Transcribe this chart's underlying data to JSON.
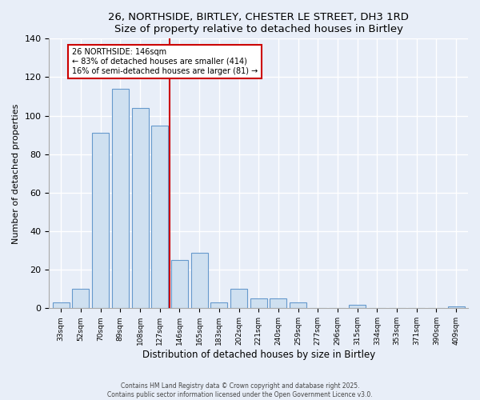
{
  "title": "26, NORTHSIDE, BIRTLEY, CHESTER LE STREET, DH3 1RD",
  "subtitle": "Size of property relative to detached houses in Birtley",
  "xlabel": "Distribution of detached houses by size in Birtley",
  "ylabel": "Number of detached properties",
  "bar_labels": [
    "33sqm",
    "52sqm",
    "70sqm",
    "89sqm",
    "108sqm",
    "127sqm",
    "146sqm",
    "165sqm",
    "183sqm",
    "202sqm",
    "221sqm",
    "240sqm",
    "259sqm",
    "277sqm",
    "296sqm",
    "315sqm",
    "334sqm",
    "353sqm",
    "371sqm",
    "390sqm",
    "409sqm"
  ],
  "bar_values": [
    3,
    10,
    91,
    114,
    104,
    95,
    25,
    29,
    3,
    10,
    5,
    5,
    3,
    0,
    0,
    2,
    0,
    0,
    0,
    0,
    1
  ],
  "bar_color": "#cfe0f0",
  "bar_edge_color": "#6699cc",
  "vline_color": "#cc0000",
  "annotation_text": "26 NORTHSIDE: 146sqm\n← 83% of detached houses are smaller (414)\n16% of semi-detached houses are larger (81) →",
  "annotation_box_color": "#ffffff",
  "annotation_box_edge": "#cc0000",
  "ylim": [
    0,
    140
  ],
  "yticks": [
    0,
    20,
    40,
    60,
    80,
    100,
    120,
    140
  ],
  "footer_line1": "Contains HM Land Registry data © Crown copyright and database right 2025.",
  "footer_line2": "Contains public sector information licensed under the Open Government Licence v3.0.",
  "background_color": "#e8eef8",
  "grid_color": "#ffffff",
  "bar_width": 0.85
}
